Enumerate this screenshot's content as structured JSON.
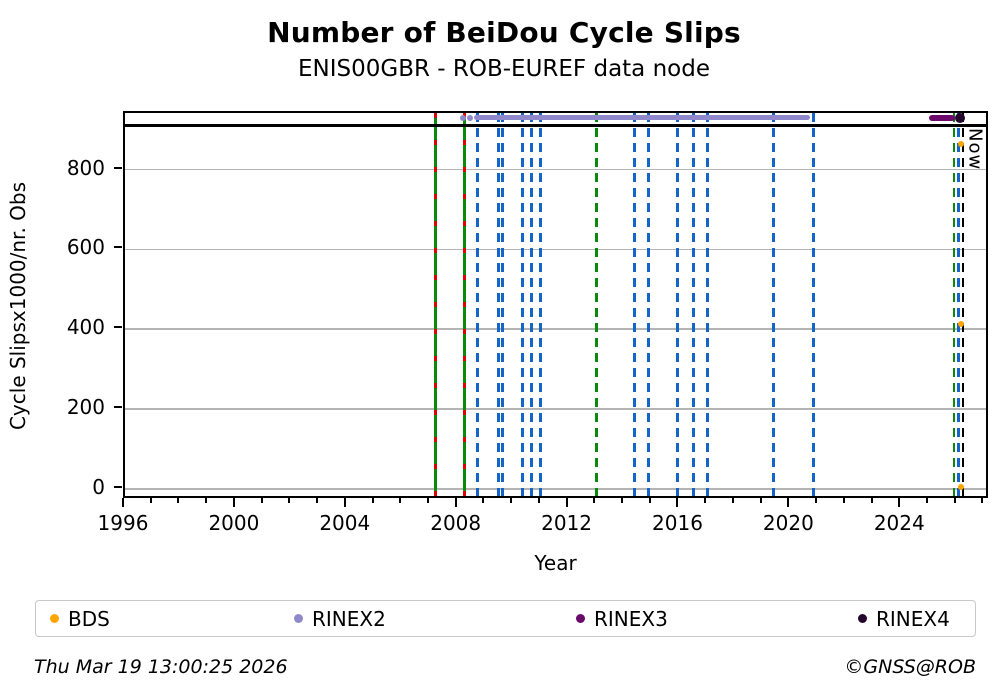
{
  "title": "Number of BeiDou Cycle Slips",
  "subtitle": "ENIS00GBR - ROB-EUREF data node",
  "footer": {
    "timestamp": "Thu Mar 19 13:00:25 2026",
    "credit": "©GNSS@ROB"
  },
  "now_label": "Now",
  "legend": [
    {
      "label": "BDS",
      "color": "#FFA500"
    },
    {
      "label": "RINEX2",
      "color": "#8F88CB"
    },
    {
      "label": "RINEX3",
      "color": "#6B0A6B"
    },
    {
      "label": "RINEX4",
      "color": "#24052B"
    }
  ],
  "chart_data": {
    "type": "scatter",
    "title": "Number of BeiDou Cycle Slips",
    "subtitle": "ENIS00GBR - ROB-EUREF data node",
    "xlabel": "Year",
    "ylabel": "Cycle Slipsx1000/nr. Obs",
    "xlim": [
      1996,
      2027.2
    ],
    "ylim": [
      -28,
      942
    ],
    "xticks": [
      1996,
      2000,
      2004,
      2008,
      2012,
      2016,
      2020,
      2024
    ],
    "minor_xtick_every_years": 1,
    "yticks": [
      0,
      200,
      400,
      600,
      800
    ],
    "grid": "horizontal-gray",
    "legend_position": "bottom",
    "colors": {
      "grid": "#b4b4b4",
      "green_event": "#0B890B",
      "red_event": "#E00000",
      "blue_event": "#1565C8",
      "now_line": "#000000",
      "threshold": "#000000"
    },
    "threshold_line": {
      "y": 910,
      "color": "#000000",
      "style": "solid"
    },
    "event_lines": {
      "green_red_dashed": [
        2007.2,
        2008.25
      ],
      "green_dashed": [
        2013.0,
        2025.9
      ],
      "blue_dashed": [
        2008.72,
        2009.47,
        2009.6,
        2010.32,
        2010.68,
        2010.98,
        2014.38,
        2014.9,
        2015.93,
        2016.52,
        2017.02,
        2019.4,
        2020.83,
        2026.08
      ],
      "now_black_dashed": 2026.21
    },
    "series": [
      {
        "name": "BDS",
        "type": "scatter",
        "color": "#FFA500",
        "marker_size": 6,
        "points": [
          [
            2026.15,
            865
          ],
          [
            2026.15,
            412
          ],
          [
            2026.15,
            5
          ]
        ]
      },
      {
        "name": "RINEX2",
        "type": "line",
        "color": "#8F88CB",
        "y": 930,
        "span": [
          2008.6,
          2020.7
        ],
        "line_width": 5,
        "lead_markers": [
          2008.2,
          2008.45
        ]
      },
      {
        "name": "RINEX3",
        "type": "line",
        "color": "#6B0A6B",
        "y": 930,
        "span": [
          2025.0,
          2025.95
        ],
        "line_width": 6,
        "lead_markers": []
      },
      {
        "name": "RINEX4",
        "type": "scatter",
        "color": "#24052B",
        "marker_size": 10,
        "points": [
          [
            2026.12,
            930
          ]
        ]
      }
    ]
  }
}
